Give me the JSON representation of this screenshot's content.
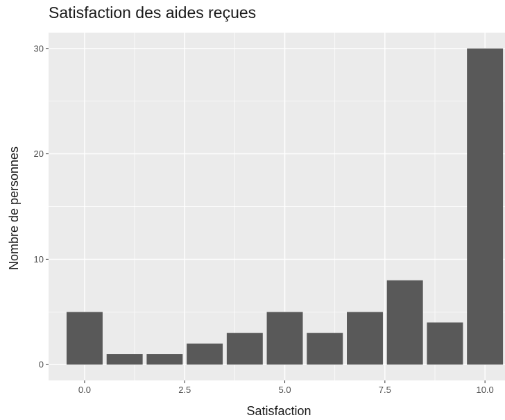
{
  "chart_data": {
    "type": "bar",
    "title": "Satisfaction des aides reçues",
    "xlabel": "Satisfaction",
    "ylabel": "Nombre de personnes",
    "x": [
      0,
      1,
      2,
      3,
      4,
      5,
      6,
      7,
      8,
      9,
      10
    ],
    "values": [
      5,
      1,
      1,
      2,
      3,
      5,
      3,
      5,
      8,
      4,
      30
    ],
    "xlim": [
      -0.9,
      10.5
    ],
    "ylim": [
      -1.5,
      31.5
    ],
    "x_ticks": [
      0,
      2.5,
      5,
      7.5,
      10
    ],
    "x_tick_labels": [
      "0.0",
      "2.5",
      "5.0",
      "7.5",
      "10.0"
    ],
    "y_ticks": [
      0,
      10,
      20,
      30
    ],
    "y_tick_labels": [
      "0",
      "10",
      "20",
      "30"
    ],
    "grid": true,
    "legend": "none",
    "colors": {
      "panel": "#ebebeb",
      "grid": "#ffffff",
      "bar": "#595959",
      "tick_text": "#4d4d4d",
      "tick_mark": "#333333",
      "title_text": "#1a1a1a"
    }
  }
}
